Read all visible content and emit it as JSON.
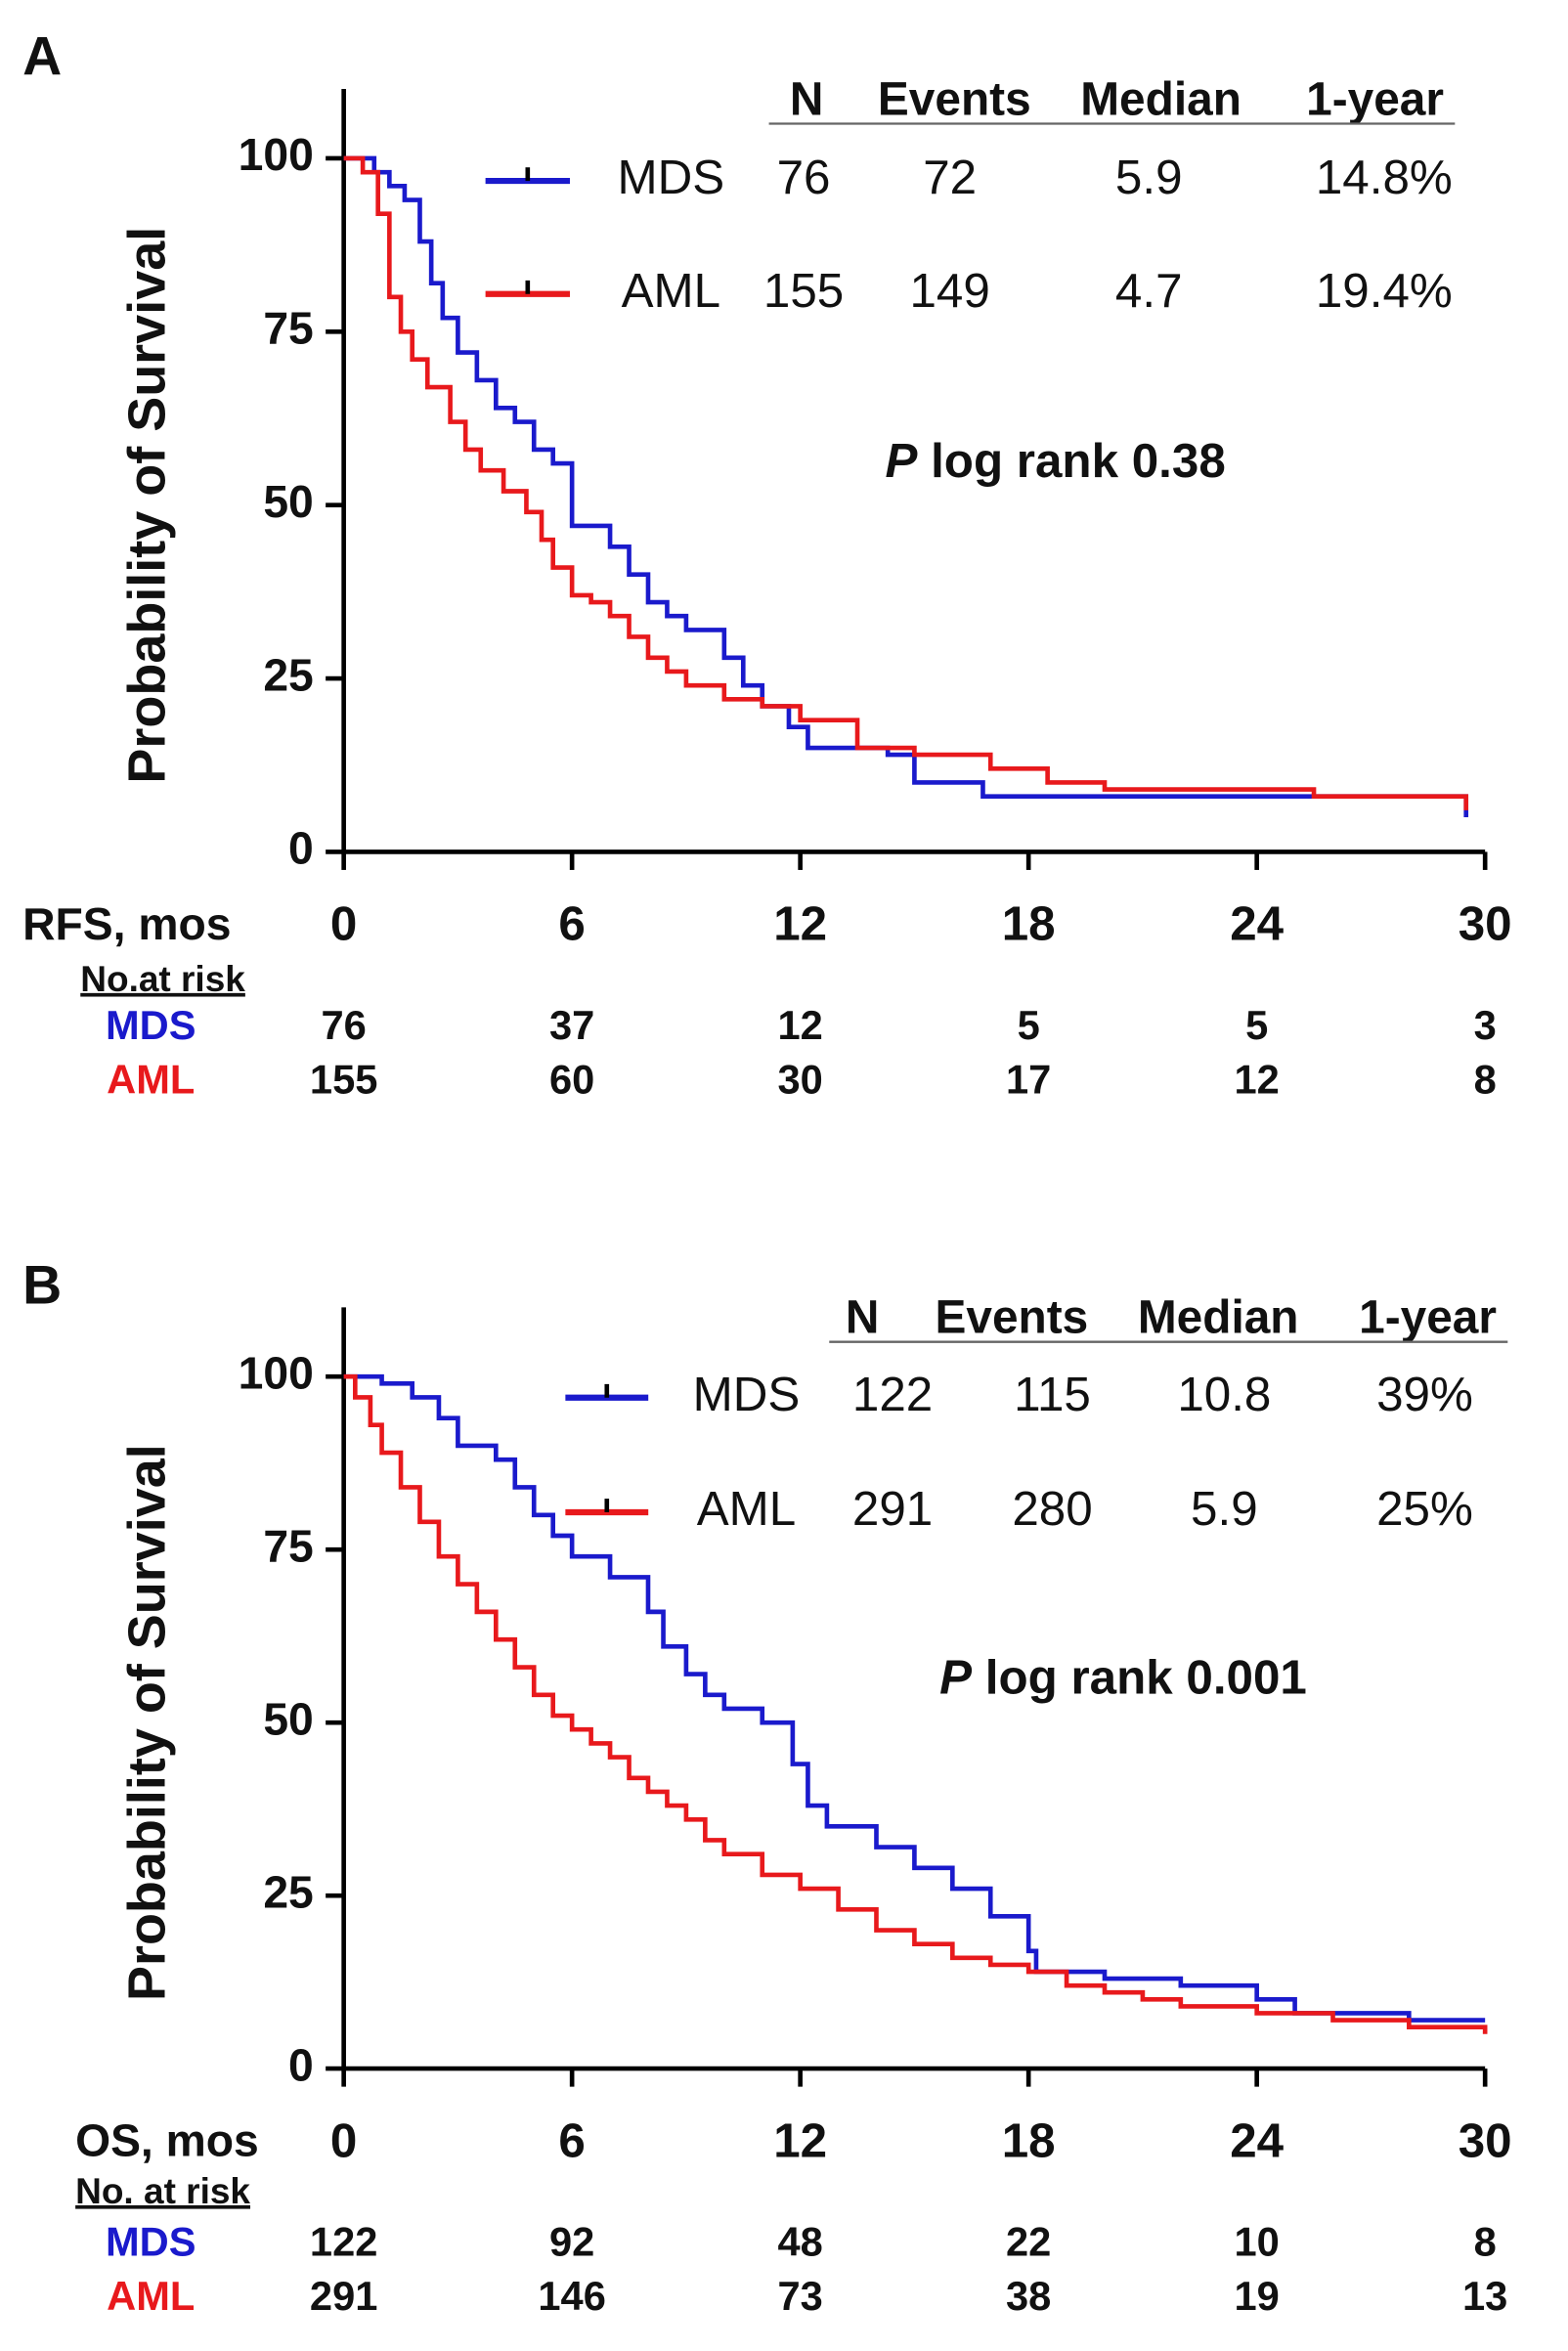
{
  "chart_data": [
    {
      "type": "line",
      "panel": "A",
      "ylabel": "Probability of Survival",
      "xlabel": "RFS, mos",
      "xlim": [
        0,
        30
      ],
      "xticks": [
        0,
        6,
        12,
        18,
        24,
        30
      ],
      "ylim": [
        0,
        110
      ],
      "yticks": [
        0,
        25,
        50,
        75,
        100
      ],
      "step": true,
      "stat_headers": [
        "N",
        "Events",
        "Median",
        "1-year"
      ],
      "annotation": {
        "italic": "P",
        "text": "log rank 0.38"
      },
      "series": [
        {
          "name": "MDS",
          "color": "#1a1acc",
          "stats": [
            "76",
            "72",
            "5.9",
            "14.8%"
          ],
          "x": [
            0,
            0.8,
            1.2,
            1.6,
            2,
            2.3,
            2.6,
            3,
            3.5,
            4,
            4.5,
            5,
            5.5,
            6,
            7,
            7.5,
            8,
            8.5,
            9,
            10,
            10.5,
            11,
            11.7,
            12.2,
            14.3,
            15,
            16.8,
            29.5
          ],
          "values": [
            100,
            98,
            96,
            94,
            88,
            82,
            77,
            72,
            68,
            64,
            62,
            58,
            56,
            47,
            44,
            40,
            36,
            34,
            32,
            28,
            24,
            21,
            18,
            15,
            14,
            10,
            8,
            5
          ]
        },
        {
          "name": "AML",
          "color": "#e8191c",
          "stats": [
            "155",
            "149",
            "4.7",
            "19.4%"
          ],
          "x": [
            0,
            0.5,
            0.9,
            1.2,
            1.5,
            1.8,
            2.2,
            2.8,
            3.2,
            3.6,
            4.2,
            4.8,
            5.2,
            5.5,
            6,
            6.5,
            7,
            7.5,
            8,
            8.5,
            9,
            10,
            11,
            12,
            13.5,
            15,
            17,
            18.5,
            20,
            25.5,
            29.5
          ],
          "values": [
            100,
            98,
            92,
            80,
            75,
            71,
            67,
            62,
            58,
            55,
            52,
            49,
            45,
            41,
            37,
            36,
            34,
            31,
            28,
            26,
            24,
            22,
            21,
            19,
            15,
            14,
            12,
            10,
            9,
            8,
            6
          ]
        }
      ],
      "risk_table": {
        "title": "No.at risk",
        "rows": [
          {
            "name": "MDS",
            "values": [
              76,
              37,
              12,
              5,
              5,
              3
            ]
          },
          {
            "name": "AML",
            "values": [
              155,
              60,
              30,
              17,
              12,
              8
            ]
          }
        ]
      }
    },
    {
      "type": "line",
      "panel": "B",
      "ylabel": "Probability of Survival",
      "xlabel": "OS, mos",
      "xlim": [
        0,
        30
      ],
      "xticks": [
        0,
        6,
        12,
        18,
        24,
        30
      ],
      "ylim": [
        0,
        110
      ],
      "yticks": [
        0,
        25,
        50,
        75,
        100
      ],
      "step": true,
      "stat_headers": [
        "N",
        "Events",
        "Median",
        "1-year"
      ],
      "annotation": {
        "italic": "P",
        "text": "log rank 0.001"
      },
      "series": [
        {
          "name": "MDS",
          "color": "#1a1acc",
          "stats": [
            "122",
            "115",
            "10.8",
            "39%"
          ],
          "x": [
            0,
            1,
            1.8,
            2.5,
            3,
            4,
            4.5,
            5,
            5.5,
            6,
            7,
            8,
            8.4,
            9,
            9.5,
            10,
            11,
            11.8,
            12.2,
            12.7,
            14,
            15,
            16,
            17,
            18,
            18.2,
            20,
            22,
            24,
            25,
            28,
            30
          ],
          "values": [
            100,
            99,
            97,
            94,
            90,
            88,
            84,
            80,
            77,
            74,
            71,
            66,
            61,
            57,
            54,
            52,
            50,
            44,
            38,
            35,
            32,
            29,
            26,
            22,
            17,
            14,
            13,
            12,
            10,
            8,
            7,
            7
          ]
        },
        {
          "name": "AML",
          "color": "#e8191c",
          "stats": [
            "291",
            "280",
            "5.9",
            "25%"
          ],
          "x": [
            0,
            0.3,
            0.7,
            1,
            1.5,
            2,
            2.5,
            3,
            3.5,
            4,
            4.5,
            5,
            5.5,
            6,
            6.5,
            7,
            7.5,
            8,
            8.5,
            9,
            9.5,
            10,
            11,
            12,
            13,
            14,
            15,
            16,
            17,
            18,
            19,
            20,
            21,
            22,
            24,
            26,
            28,
            30
          ],
          "values": [
            100,
            97,
            93,
            89,
            84,
            79,
            74,
            70,
            66,
            62,
            58,
            54,
            51,
            49,
            47,
            45,
            42,
            40,
            38,
            36,
            33,
            31,
            28,
            26,
            23,
            20,
            18,
            16,
            15,
            14,
            12,
            11,
            10,
            9,
            8,
            7,
            6,
            5
          ]
        }
      ],
      "risk_table": {
        "title": "No. at risk",
        "rows": [
          {
            "name": "MDS",
            "values": [
              122,
              92,
              48,
              22,
              10,
              8
            ]
          },
          {
            "name": "AML",
            "values": [
              291,
              146,
              73,
              38,
              19,
              13
            ]
          }
        ]
      }
    }
  ]
}
